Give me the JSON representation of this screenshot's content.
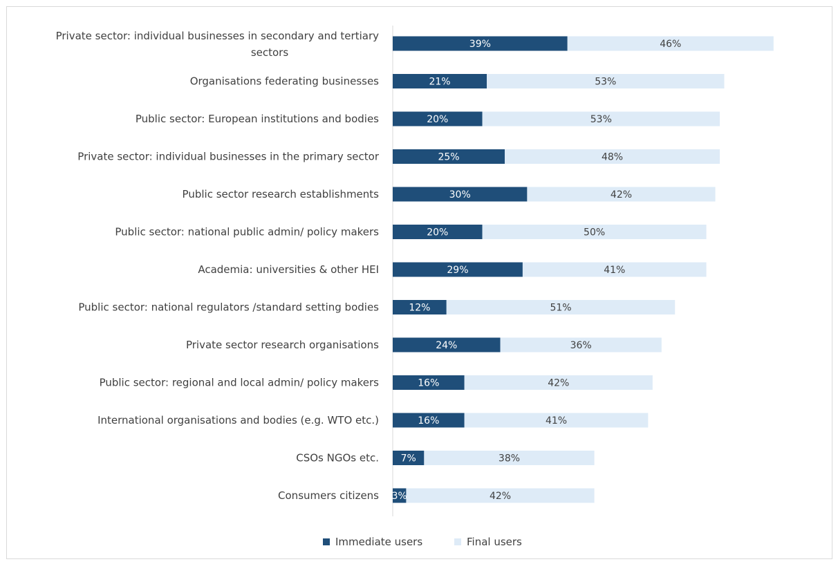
{
  "chart_data": {
    "type": "bar",
    "orientation": "horizontal",
    "stacked": true,
    "categories": [
      [
        "Private sector: individual businesses in secondary and tertiary",
        "sectors"
      ],
      [
        "Organisations federating businesses"
      ],
      [
        "Public sector: European institutions and bodies"
      ],
      [
        "Private sector: individual businesses in the primary sector"
      ],
      [
        "Public sector research establishments"
      ],
      [
        "Public sector: national public admin/ policy makers"
      ],
      [
        "Academia: universities & other HEI"
      ],
      [
        "Public sector: national regulators /standard setting bodies"
      ],
      [
        "Private sector research organisations"
      ],
      [
        "Public sector: regional and local admin/ policy makers"
      ],
      [
        "International organisations and bodies (e.g. WTO etc.)"
      ],
      [
        "CSOs NGOs etc."
      ],
      [
        "Consumers citizens"
      ]
    ],
    "series": [
      {
        "name": "Immediate users",
        "color": "#1f4e79",
        "values": [
          39,
          21,
          20,
          25,
          30,
          20,
          29,
          12,
          24,
          16,
          16,
          7,
          3
        ],
        "labels": [
          "39%",
          "21%",
          "20%",
          "25%",
          "30%",
          "20%",
          "29%",
          "12%",
          "24%",
          "16%",
          "16%",
          "7%",
          "3%"
        ]
      },
      {
        "name": "Final users",
        "color": "#deebf7",
        "values": [
          46,
          53,
          53,
          48,
          42,
          50,
          41,
          51,
          36,
          42,
          41,
          38,
          42
        ],
        "labels": [
          "46%",
          "53%",
          "53%",
          "48%",
          "42%",
          "50%",
          "41%",
          "51%",
          "36%",
          "42%",
          "41%",
          "38%",
          "42%"
        ]
      }
    ],
    "xlim": [
      0,
      100
    ],
    "legend": "bottom",
    "grid": false
  }
}
